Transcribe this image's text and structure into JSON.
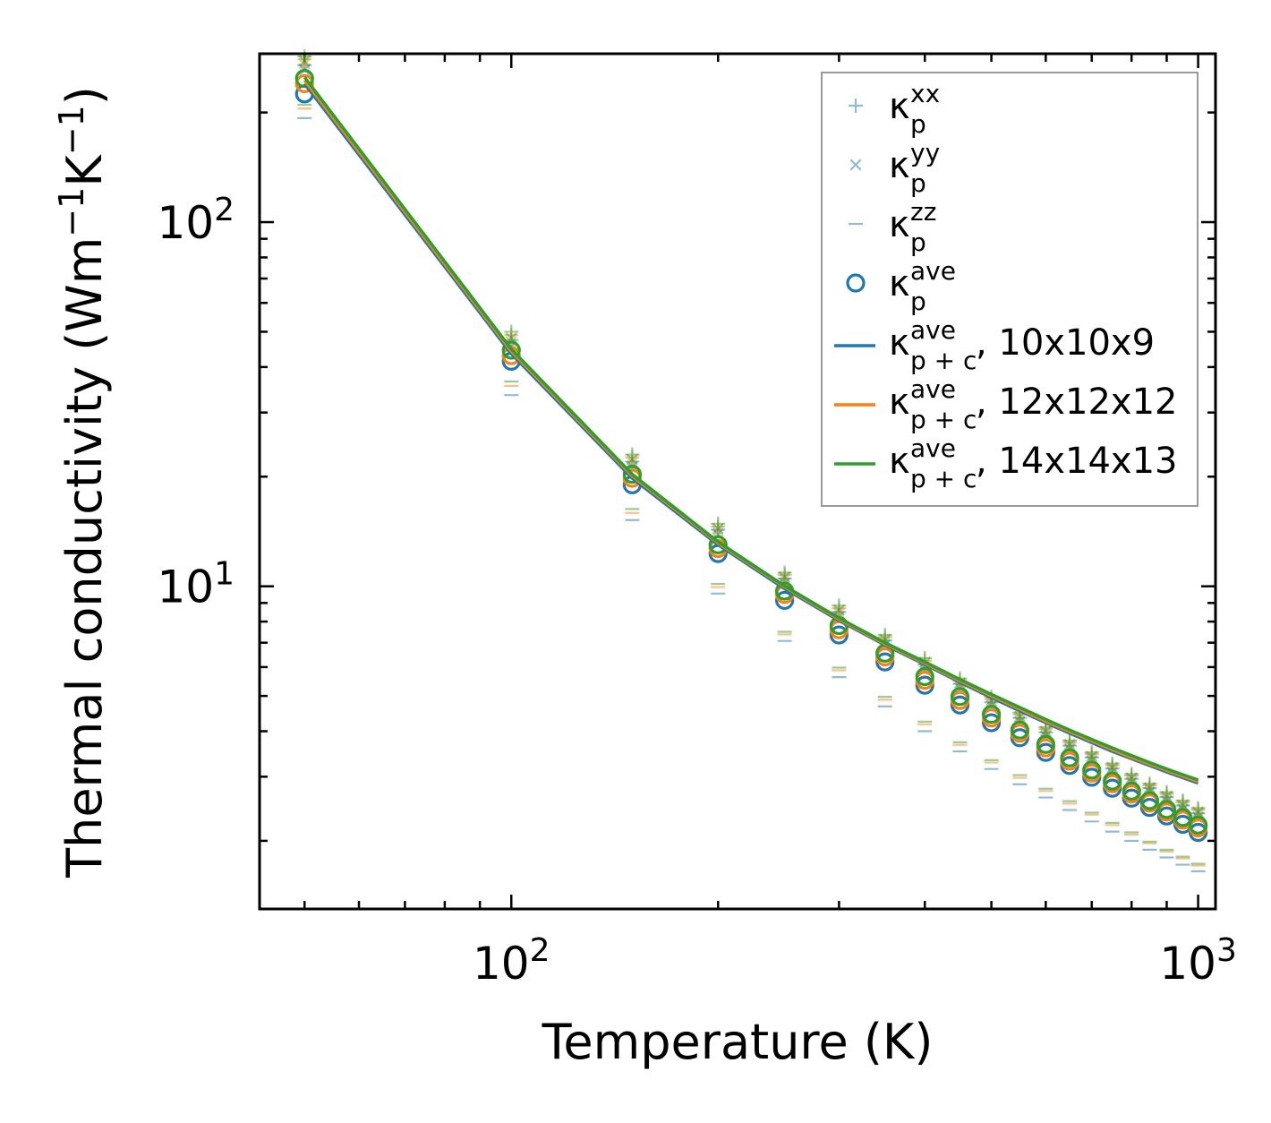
{
  "chart_data": {
    "type": "scatter",
    "xscale": "log",
    "yscale": "log",
    "xlim": [
      43,
      1060
    ],
    "ylim": [
      1.3,
      290
    ],
    "xlabel": "Temperature (K)",
    "ylabel_main": "Thermal conductivity (Wm",
    "ylabel_sup1": "−1",
    "ylabel_mid": "K",
    "ylabel_sup2": "−1",
    "ylabel_end": ")",
    "xticks": [
      {
        "base": "10",
        "exp": "2",
        "value": 100
      },
      {
        "base": "10",
        "exp": "3",
        "value": 1000
      }
    ],
    "yticks": [
      {
        "base": "10",
        "exp": "1",
        "value": 10
      },
      {
        "base": "10",
        "exp": "2",
        "value": 100
      }
    ],
    "temperatures": [
      50,
      100,
      150,
      200,
      250,
      300,
      350,
      400,
      450,
      500,
      550,
      600,
      650,
      700,
      750,
      800,
      850,
      900,
      950,
      1000
    ],
    "meshes": [
      {
        "name": "10x10x9",
        "color": "#1f77b4",
        "xx": [
          270,
          47.5,
          22.0,
          14.3,
          10.5,
          8.5,
          7.1,
          6.1,
          5.4,
          4.8,
          4.35,
          3.97,
          3.65,
          3.39,
          3.16,
          2.96,
          2.79,
          2.64,
          2.5,
          2.38
        ],
        "yy": [
          262,
          45.5,
          21.3,
          13.9,
          10.2,
          8.25,
          6.9,
          5.95,
          5.25,
          4.7,
          4.25,
          3.88,
          3.57,
          3.31,
          3.08,
          2.89,
          2.72,
          2.57,
          2.44,
          2.32
        ],
        "zz": [
          193,
          33.5,
          15.2,
          9.55,
          7.08,
          5.63,
          4.68,
          4.0,
          3.52,
          3.15,
          2.86,
          2.63,
          2.43,
          2.26,
          2.12,
          2.0,
          1.89,
          1.8,
          1.72,
          1.65
        ],
        "ave": [
          225,
          41.5,
          19.0,
          12.3,
          9.15,
          7.35,
          6.2,
          5.35,
          4.72,
          4.22,
          3.84,
          3.5,
          3.22,
          2.99,
          2.79,
          2.62,
          2.47,
          2.34,
          2.22,
          2.11
        ],
        "pc": [
          240,
          43.5,
          19.8,
          13.0,
          9.85,
          8.05,
          6.9,
          6.1,
          5.45,
          4.95,
          4.55,
          4.22,
          3.95,
          3.72,
          3.52,
          3.36,
          3.22,
          3.09,
          2.98,
          2.88
        ]
      },
      {
        "name": "12x12x12",
        "color": "#ff7f0e",
        "xx": [
          280,
          49.0,
          22.6,
          14.6,
          10.75,
          8.7,
          7.25,
          6.25,
          5.5,
          4.9,
          4.45,
          4.05,
          3.72,
          3.46,
          3.22,
          3.02,
          2.84,
          2.69,
          2.55,
          2.43
        ],
        "yy": [
          272,
          47.0,
          21.9,
          14.2,
          10.45,
          8.45,
          7.05,
          6.08,
          5.35,
          4.78,
          4.33,
          3.95,
          3.63,
          3.37,
          3.14,
          2.94,
          2.77,
          2.62,
          2.48,
          2.37
        ],
        "zz": [
          205,
          35.5,
          15.9,
          9.95,
          7.38,
          5.88,
          4.88,
          4.18,
          3.67,
          3.28,
          2.98,
          2.74,
          2.53,
          2.36,
          2.21,
          2.08,
          1.97,
          1.87,
          1.79,
          1.71
        ],
        "ave": [
          240,
          43.0,
          19.8,
          12.7,
          9.5,
          7.6,
          6.4,
          5.52,
          4.86,
          4.35,
          3.95,
          3.6,
          3.31,
          3.07,
          2.87,
          2.69,
          2.54,
          2.4,
          2.28,
          2.17
        ],
        "pc": [
          245,
          44.2,
          20.1,
          13.15,
          9.95,
          8.12,
          6.95,
          6.15,
          5.5,
          5.0,
          4.6,
          4.26,
          3.99,
          3.76,
          3.56,
          3.39,
          3.25,
          3.12,
          3.01,
          2.91
        ]
      },
      {
        "name": "14x14x13",
        "color": "#2ca02c",
        "xx": [
          285,
          50.0,
          23.0,
          14.85,
          10.9,
          8.85,
          7.35,
          6.35,
          5.58,
          4.97,
          4.5,
          4.1,
          3.77,
          3.5,
          3.26,
          3.05,
          2.87,
          2.72,
          2.58,
          2.46
        ],
        "yy": [
          277,
          48.0,
          22.3,
          14.4,
          10.6,
          8.6,
          7.15,
          6.18,
          5.43,
          4.85,
          4.39,
          4.0,
          3.68,
          3.41,
          3.18,
          2.98,
          2.8,
          2.65,
          2.51,
          2.4
        ],
        "zz": [
          210,
          36.5,
          16.3,
          10.15,
          7.5,
          5.98,
          4.97,
          4.25,
          3.73,
          3.33,
          3.03,
          2.78,
          2.57,
          2.39,
          2.24,
          2.11,
          1.99,
          1.89,
          1.81,
          1.73
        ],
        "ave": [
          248,
          44.5,
          20.3,
          13.0,
          9.7,
          7.8,
          6.55,
          5.65,
          4.98,
          4.45,
          4.03,
          3.68,
          3.38,
          3.13,
          2.92,
          2.74,
          2.58,
          2.44,
          2.32,
          2.21
        ],
        "pc": [
          250,
          44.8,
          20.3,
          13.25,
          10.02,
          8.18,
          7.0,
          6.2,
          5.55,
          5.05,
          4.65,
          4.31,
          4.03,
          3.8,
          3.6,
          3.43,
          3.28,
          3.15,
          3.04,
          2.94
        ]
      }
    ],
    "legend": {
      "position": "top-right",
      "entries": [
        {
          "marker": "plus",
          "base": "κ",
          "sup": "xx",
          "sub": "p",
          "suffix": ""
        },
        {
          "marker": "x",
          "base": "κ",
          "sup": "yy",
          "sub": "p",
          "suffix": ""
        },
        {
          "marker": "dash",
          "base": "κ",
          "sup": "zz",
          "sub": "p",
          "suffix": ""
        },
        {
          "marker": "circle",
          "base": "κ",
          "sup": "ave",
          "sub": "p",
          "suffix": ""
        },
        {
          "marker": "line",
          "base": "κ",
          "sup": "ave",
          "sub": "p + c",
          "suffix": ", 10x10x9",
          "color": "#1f77b4"
        },
        {
          "marker": "line",
          "base": "κ",
          "sup": "ave",
          "sub": "p + c",
          "suffix": ", 12x12x12",
          "color": "#ff7f0e"
        },
        {
          "marker": "line",
          "base": "κ",
          "sup": "ave",
          "sub": "p + c",
          "suffix": ", 14x14x13",
          "color": "#2ca02c"
        }
      ]
    }
  }
}
